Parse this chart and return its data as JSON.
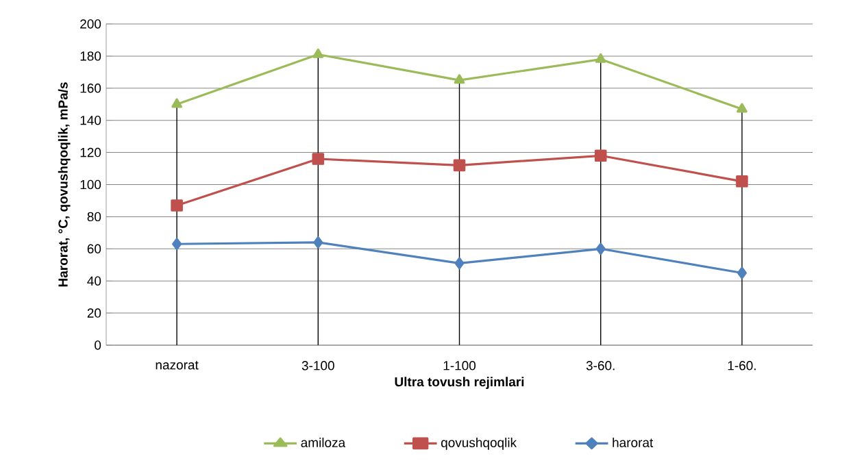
{
  "chart_data": {
    "type": "line",
    "xlabel": "Ultra tovush rejimlari",
    "ylabel": "Harorat, °C, qovushqoqlik, mPa/s",
    "categories": [
      "nazorat",
      "3-100",
      "1-100",
      "3-60.",
      "1-60."
    ],
    "series": [
      {
        "name": "amiloza",
        "color": "#9bbb59",
        "marker": "triangle",
        "values": [
          150,
          181,
          165,
          178,
          147
        ]
      },
      {
        "name": "qovushqoqlik",
        "color": "#c0504d",
        "marker": "square",
        "values": [
          87,
          116,
          112,
          118,
          102
        ]
      },
      {
        "name": "harorat",
        "color": "#4f81bd",
        "marker": "diamond",
        "values": [
          63,
          64,
          51,
          60,
          45
        ]
      }
    ],
    "ylim": [
      0,
      200
    ],
    "yticks": [
      0,
      20,
      40,
      60,
      80,
      100,
      120,
      140,
      160,
      180,
      200
    ],
    "grid": "y",
    "legend": "bottom",
    "line_style": "solid",
    "ref_lines": [
      {
        "axis": "x",
        "value": "nazorat",
        "color": "#000000"
      },
      {
        "axis": "x",
        "value": "3-100",
        "color": "#000000"
      },
      {
        "axis": "x",
        "value": "1-100",
        "color": "#000000"
      },
      {
        "axis": "x",
        "value": "3-60.",
        "color": "#000000"
      },
      {
        "axis": "x",
        "value": "1-60.",
        "color": "#000000"
      }
    ]
  }
}
